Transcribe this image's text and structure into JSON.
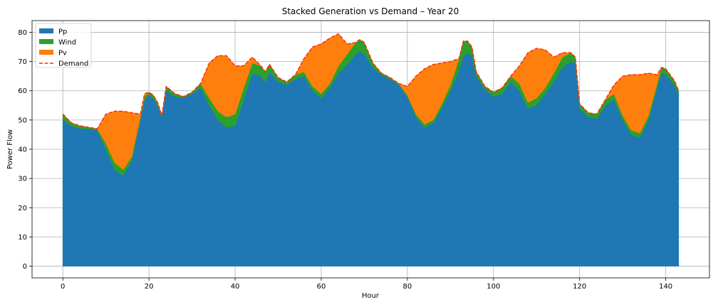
{
  "chart_data": {
    "type": "area",
    "title": "Stacked Generation vs Demand – Year 20",
    "xlabel": "Hour",
    "ylabel": "Power Flow",
    "xlim": [
      -7.15,
      150.15
    ],
    "ylim": [
      -4,
      84
    ],
    "xticks": [
      0,
      20,
      40,
      60,
      80,
      100,
      120,
      140
    ],
    "yticks": [
      0,
      10,
      20,
      30,
      40,
      50,
      60,
      70,
      80
    ],
    "grid": true,
    "legend_position": "top-left",
    "hour_range": [
      0,
      143
    ],
    "anchor_hours": [
      0,
      2,
      4,
      6,
      8,
      10,
      12,
      14,
      16,
      18,
      19,
      20,
      21,
      22,
      23,
      24,
      26,
      28,
      30,
      32,
      34,
      36,
      38,
      40,
      42,
      44,
      46,
      47,
      48,
      50,
      52,
      54,
      56,
      58,
      60,
      62,
      64,
      66,
      68,
      69,
      70,
      72,
      74,
      76,
      78,
      80,
      82,
      84,
      86,
      88,
      90,
      92,
      93,
      94,
      95,
      96,
      98,
      100,
      102,
      104,
      106,
      108,
      110,
      112,
      114,
      116,
      118,
      119,
      120,
      122,
      124,
      126,
      128,
      130,
      132,
      134,
      136,
      138,
      139,
      140,
      142,
      143
    ],
    "series": [
      {
        "name": "Pp",
        "color": "#1f77b4",
        "kind": "stack",
        "values": [
          50,
          48,
          47,
          47,
          46.5,
          40,
          33,
          31,
          36,
          50,
          57,
          58.5,
          57.5,
          55,
          51,
          60,
          58,
          57.5,
          59,
          61,
          55,
          50,
          47.5,
          48,
          57,
          66,
          65,
          63,
          66.5,
          63,
          62,
          64,
          65,
          60,
          57.5,
          61,
          66,
          69,
          72.5,
          73.5,
          72.5,
          68,
          65.5,
          64,
          62,
          58,
          51,
          47.5,
          49,
          54,
          60,
          67,
          72,
          73,
          72,
          65,
          60.5,
          58,
          59,
          63,
          60,
          54,
          55,
          59,
          63,
          68,
          70,
          69.5,
          54,
          51,
          50.5,
          55,
          57,
          50,
          45,
          44,
          50,
          61,
          66,
          65.5,
          62,
          59
        ]
      },
      {
        "name": "Wind",
        "color": "#2ca02c",
        "kind": "stack",
        "values": [
          2,
          1,
          1,
          0.5,
          0.5,
          2,
          2.5,
          2,
          1.5,
          1,
          1,
          1,
          1,
          1,
          0.5,
          1.5,
          1,
          0.5,
          0.5,
          1.5,
          2.5,
          3,
          3.5,
          4,
          4,
          3.5,
          3.5,
          3.5,
          2.5,
          1.5,
          1,
          1.5,
          1.5,
          1.5,
          1.5,
          1.5,
          2.5,
          3.5,
          4,
          4,
          4,
          1.5,
          0.5,
          0.5,
          0.5,
          0.5,
          1,
          1,
          1,
          1.5,
          2,
          4,
          5,
          4,
          3,
          1.5,
          1,
          1.5,
          2,
          2,
          2.5,
          2,
          2.5,
          2,
          3,
          3.5,
          3,
          2,
          1.5,
          1.5,
          1.5,
          2,
          2,
          1.5,
          1.5,
          1.5,
          1.5,
          1.5,
          2,
          2,
          1.5,
          1
        ]
      },
      {
        "name": "Pv",
        "color": "#ff7f0e",
        "kind": "stack",
        "values": [
          0,
          0,
          0,
          0,
          0,
          10,
          17.5,
          20,
          15,
          1,
          1,
          0,
          0,
          0,
          0,
          0,
          0,
          0,
          0,
          0,
          12,
          19,
          21,
          16.5,
          7.5,
          2,
          0,
          0,
          0,
          0,
          0,
          0,
          4.5,
          13.5,
          17,
          15.5,
          11,
          3.5,
          0,
          0,
          0,
          0,
          0,
          0,
          0,
          3,
          13,
          19,
          19,
          14,
          8,
          0,
          0,
          0,
          0,
          0,
          0,
          0,
          0,
          0,
          6,
          17,
          17,
          13,
          5.5,
          1.5,
          0,
          0,
          0,
          0,
          0,
          0,
          3,
          13.5,
          19,
          20,
          14.5,
          3,
          0,
          0,
          0,
          0
        ]
      },
      {
        "name": "Demand",
        "color": "#ff2a12",
        "kind": "dashed-line",
        "values": [
          52,
          49,
          48,
          47.5,
          47,
          52,
          53,
          53,
          52.5,
          52,
          59,
          59.5,
          58.5,
          56,
          51.5,
          61.5,
          59,
          58,
          59.5,
          62.5,
          69.5,
          72,
          72,
          68.5,
          68.5,
          71.5,
          68.5,
          66.5,
          69,
          64.5,
          63,
          65.5,
          71,
          75,
          76,
          78,
          79.5,
          76,
          76.5,
          77.5,
          76.5,
          69.5,
          66,
          64.5,
          62.5,
          61.5,
          65,
          67.5,
          69,
          69.5,
          70,
          71,
          77,
          77,
          75,
          66.5,
          61.5,
          59.5,
          61,
          65,
          68.5,
          73,
          74.5,
          74,
          71.5,
          73,
          73,
          71.5,
          55.5,
          52.5,
          52,
          57,
          62,
          65,
          65.5,
          65.5,
          66,
          65.5,
          68,
          67.5,
          63.5,
          60
        ]
      }
    ]
  }
}
